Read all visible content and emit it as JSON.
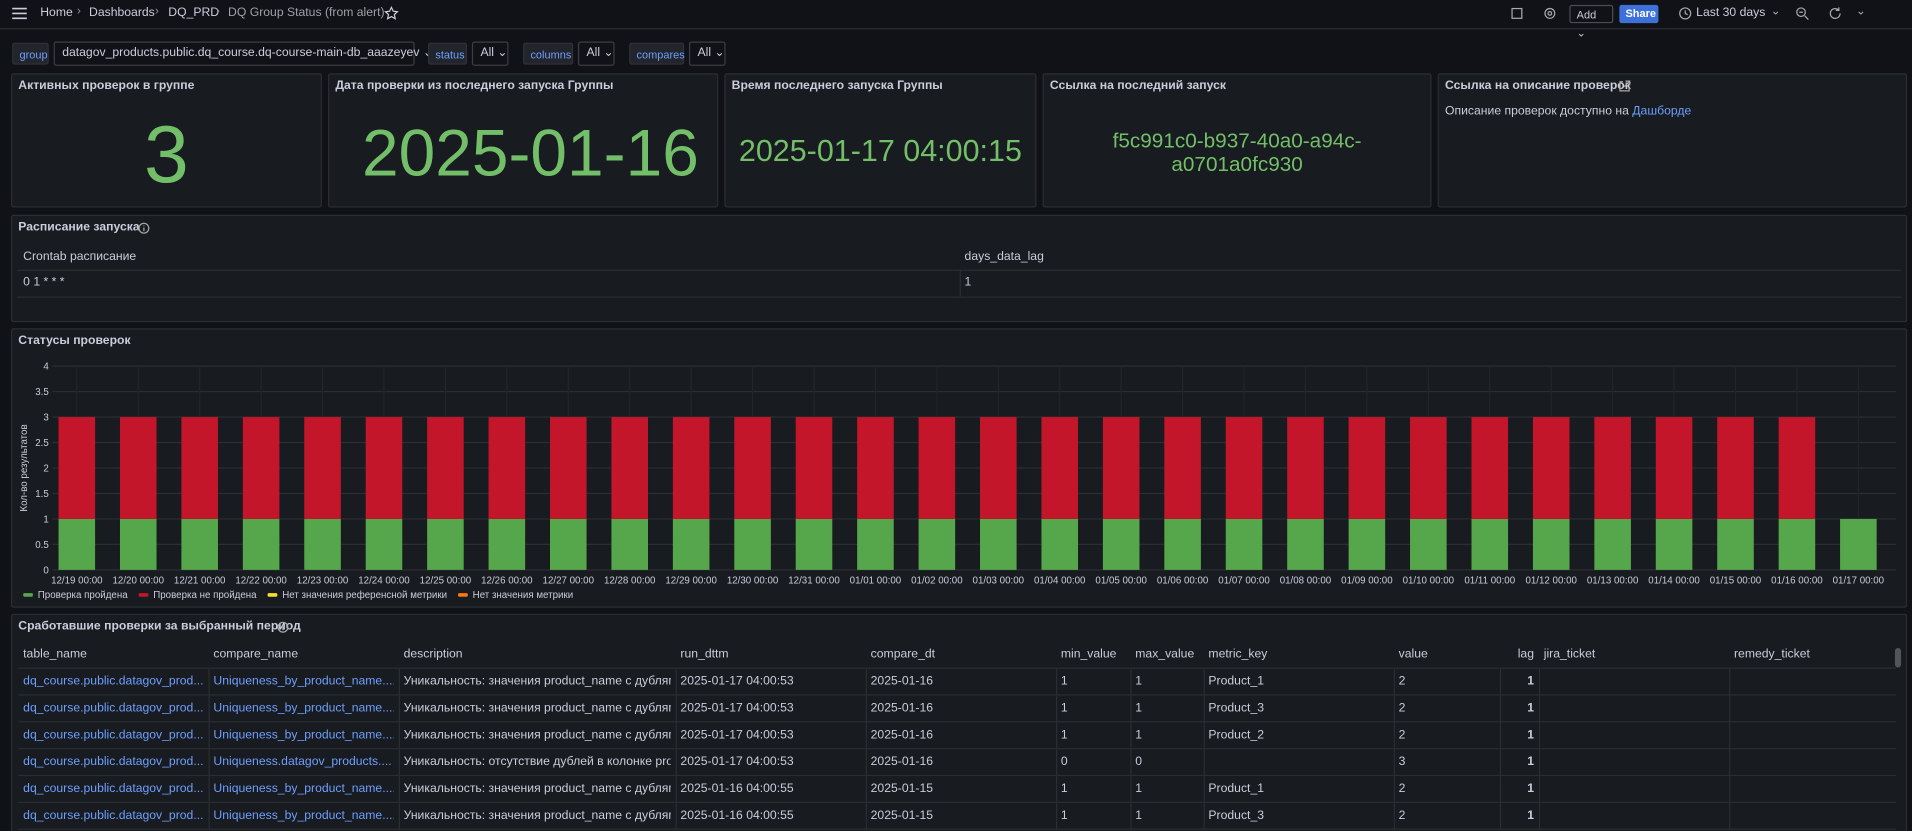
{
  "topbar": {
    "breadcrumbs": [
      "Home",
      "Dashboards",
      "DQ_PRD",
      "DQ Group Status (from alert)"
    ],
    "add": "Add",
    "share": "Share",
    "time_range": "Last 30 days"
  },
  "variables": [
    {
      "label": "group",
      "value": "datagov_products.public.dq_course.dq-course-main-db_aaazeyev"
    },
    {
      "label": "status",
      "value": "All"
    },
    {
      "label": "columns",
      "value": "All"
    },
    {
      "label": "compares",
      "value": "All"
    }
  ],
  "stats": [
    {
      "title": "Активных проверок в группе",
      "value": 3
    },
    {
      "title": "Дата проверки из последнего запуска Группы",
      "value": "2025-01-16"
    },
    {
      "title": "Время последнего запуска Группы",
      "value": "2025-01-17 04:00:15"
    },
    {
      "title": "Ссылка на последний запуск",
      "value": "f5c991c0-b937-40a0-a94c-a0701a0fc930"
    }
  ],
  "link_panel": {
    "title": "Ссылка на описание проверок",
    "text": "Описание проверок доступно на",
    "link": "Дашборде"
  },
  "schedule": {
    "title": "Расписание запуска",
    "columns": [
      "Crontab расписание",
      "days_data_lag"
    ],
    "rows": [
      [
        "0 1 * * *",
        1
      ]
    ]
  },
  "chart_data": {
    "type": "bar",
    "stacked": true,
    "title": "Статусы проверок",
    "y_label": "Кол-во результатов",
    "categories": [
      "12/19 00:00",
      "12/20 00:00",
      "12/21 00:00",
      "12/22 00:00",
      "12/23 00:00",
      "12/24 00:00",
      "12/25 00:00",
      "12/26 00:00",
      "12/27 00:00",
      "12/28 00:00",
      "12/29 00:00",
      "12/30 00:00",
      "12/31 00:00",
      "01/01 00:00",
      "01/02 00:00",
      "01/03 00:00",
      "01/04 00:00",
      "01/05 00:00",
      "01/06 00:00",
      "01/07 00:00",
      "01/08 00:00",
      "01/09 00:00",
      "01/10 00:00",
      "01/11 00:00",
      "01/12 00:00",
      "01/13 00:00",
      "01/14 00:00",
      "01/15 00:00",
      "01/16 00:00",
      "01/17 00:00"
    ],
    "series": [
      {
        "name": "Проверка пройдена",
        "color": "#56a64b",
        "values": [
          1,
          1,
          1,
          1,
          1,
          1,
          1,
          1,
          1,
          1,
          1,
          1,
          1,
          1,
          1,
          1,
          1,
          1,
          1,
          1,
          1,
          1,
          1,
          1,
          1,
          1,
          1,
          1,
          1,
          1
        ]
      },
      {
        "name": "Проверка не пройдена",
        "color": "#c4162a",
        "values": [
          2,
          2,
          2,
          2,
          2,
          2,
          2,
          2,
          2,
          2,
          2,
          2,
          2,
          2,
          2,
          2,
          2,
          2,
          2,
          2,
          2,
          2,
          2,
          2,
          2,
          2,
          2,
          2,
          2,
          0
        ]
      },
      {
        "name": "Нет значения референсной метрики",
        "color": "#fade2a",
        "values": [
          0,
          0,
          0,
          0,
          0,
          0,
          0,
          0,
          0,
          0,
          0,
          0,
          0,
          0,
          0,
          0,
          0,
          0,
          0,
          0,
          0,
          0,
          0,
          0,
          0,
          0,
          0,
          0,
          0,
          0
        ]
      },
      {
        "name": "Нет значения метрики",
        "color": "#ff780a",
        "values": [
          0,
          0,
          0,
          0,
          0,
          0,
          0,
          0,
          0,
          0,
          0,
          0,
          0,
          0,
          0,
          0,
          0,
          0,
          0,
          0,
          0,
          0,
          0,
          0,
          0,
          0,
          0,
          0,
          0,
          0
        ]
      }
    ],
    "ylim": [
      0,
      4
    ],
    "yticks": [
      0,
      0.5,
      1,
      1.5,
      2,
      2.5,
      3,
      3.5,
      4
    ],
    "grid": true,
    "legend": "bottom"
  },
  "table": {
    "title": "Сработавшие проверки за выбранный период",
    "columns": [
      "table_name",
      "compare_name",
      "description",
      "run_dttm",
      "compare_dt",
      "min_value",
      "max_value",
      "metric_key",
      "value",
      "lag",
      "jira_ticket",
      "remedy_ticket"
    ],
    "rows": [
      [
        "dq_course.public.datagov_prod...",
        "Uniqueness_by_product_name....",
        "Уникальность: значения product_name с дублями",
        "2025-01-17 04:00:53",
        "2025-01-16",
        1,
        1,
        "Product_1",
        2,
        1,
        null,
        null
      ],
      [
        "dq_course.public.datagov_prod...",
        "Uniqueness_by_product_name....",
        "Уникальность: значения product_name с дублями",
        "2025-01-17 04:00:53",
        "2025-01-16",
        1,
        1,
        "Product_3",
        2,
        1,
        null,
        null
      ],
      [
        "dq_course.public.datagov_prod...",
        "Uniqueness_by_product_name....",
        "Уникальность: значения product_name с дублями",
        "2025-01-17 04:00:53",
        "2025-01-16",
        1,
        1,
        "Product_2",
        2,
        1,
        null,
        null
      ],
      [
        "dq_course.public.datagov_prod...",
        "Uniqueness.datagov_products....",
        "Уникальность: отсутствие дублей в колонке product",
        "2025-01-17 04:00:53",
        "2025-01-16",
        0,
        0,
        null,
        3,
        1,
        null,
        null
      ],
      [
        "dq_course.public.datagov_prod...",
        "Uniqueness_by_product_name....",
        "Уникальность: значения product_name с дублями",
        "2025-01-16 04:00:55",
        "2025-01-15",
        1,
        1,
        "Product_1",
        2,
        1,
        null,
        null
      ],
      [
        "dq_course.public.datagov_prod...",
        "Uniqueness_by_product_name....",
        "Уникальность: значения product_name с дублями",
        "2025-01-16 04:00:55",
        "2025-01-15",
        1,
        1,
        "Product_3",
        2,
        1,
        null,
        null
      ]
    ]
  }
}
